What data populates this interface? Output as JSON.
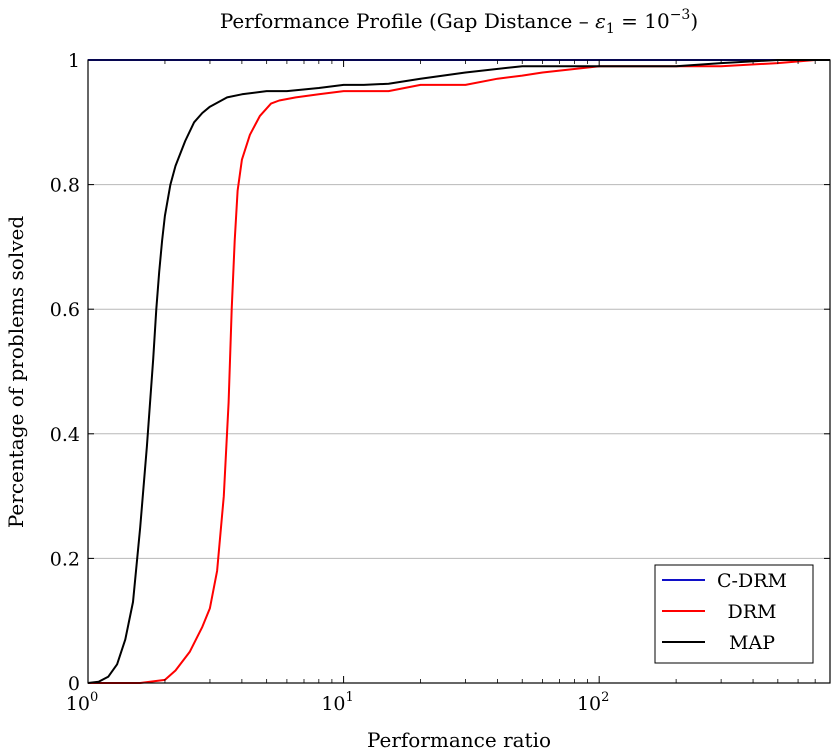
{
  "chart_data": {
    "type": "line",
    "title": {
      "prefix": "Performance Profile (Gap Distance – ",
      "epsilon": "ε",
      "sub": "1",
      "equals": " = 10",
      "exp": "−3",
      "suffix": ")"
    },
    "xlabel": "Performance ratio",
    "ylabel": "Percentage of problems solved",
    "xscale": "log",
    "xlim": [
      1,
      800
    ],
    "ylim": [
      0,
      1
    ],
    "grid": "horizontal",
    "legend_position": "bottom-right",
    "x_ticks": [
      {
        "value": 1,
        "base": "10",
        "exp": "0"
      },
      {
        "value": 10,
        "base": "10",
        "exp": "1"
      },
      {
        "value": 100,
        "base": "10",
        "exp": "2"
      }
    ],
    "y_ticks": [
      {
        "value": 0,
        "label": "0"
      },
      {
        "value": 0.2,
        "label": "0.2"
      },
      {
        "value": 0.4,
        "label": "0.4"
      },
      {
        "value": 0.6,
        "label": "0.6"
      },
      {
        "value": 0.8,
        "label": "0.8"
      },
      {
        "value": 1,
        "label": "1"
      }
    ],
    "series": [
      {
        "name": "C-DRM",
        "color": "#1010c8",
        "x": [
          1,
          800
        ],
        "y": [
          1.0,
          1.0
        ]
      },
      {
        "name": "DRM",
        "color": "#ff0000",
        "x": [
          1,
          1.6,
          2.0,
          2.2,
          2.5,
          2.8,
          3.0,
          3.2,
          3.4,
          3.55,
          3.65,
          3.75,
          3.85,
          4.0,
          4.3,
          4.7,
          5.2,
          5.6,
          6.5,
          8,
          10,
          15,
          20,
          30,
          40,
          50,
          60,
          100,
          200,
          300,
          500,
          700,
          800
        ],
        "y": [
          0,
          0,
          0.005,
          0.02,
          0.05,
          0.09,
          0.12,
          0.18,
          0.3,
          0.45,
          0.6,
          0.71,
          0.79,
          0.84,
          0.88,
          0.91,
          0.93,
          0.935,
          0.94,
          0.945,
          0.95,
          0.95,
          0.96,
          0.96,
          0.97,
          0.975,
          0.98,
          0.99,
          0.99,
          0.99,
          0.995,
          1.0,
          1.0
        ]
      },
      {
        "name": "MAP",
        "color": "#000000",
        "x": [
          1,
          1.1,
          1.2,
          1.3,
          1.4,
          1.5,
          1.6,
          1.7,
          1.8,
          1.85,
          1.9,
          1.95,
          2.0,
          2.1,
          2.2,
          2.4,
          2.6,
          2.8,
          3.0,
          3.5,
          4.0,
          5.0,
          6.0,
          8,
          10,
          12,
          15,
          20,
          30,
          50,
          100,
          200,
          300,
          500,
          800
        ],
        "y": [
          0,
          0.002,
          0.01,
          0.03,
          0.07,
          0.13,
          0.25,
          0.38,
          0.52,
          0.6,
          0.66,
          0.71,
          0.75,
          0.8,
          0.83,
          0.87,
          0.9,
          0.915,
          0.925,
          0.94,
          0.945,
          0.95,
          0.95,
          0.955,
          0.96,
          0.96,
          0.962,
          0.97,
          0.98,
          0.99,
          0.99,
          0.99,
          0.995,
          1.0,
          1.0
        ]
      }
    ]
  }
}
